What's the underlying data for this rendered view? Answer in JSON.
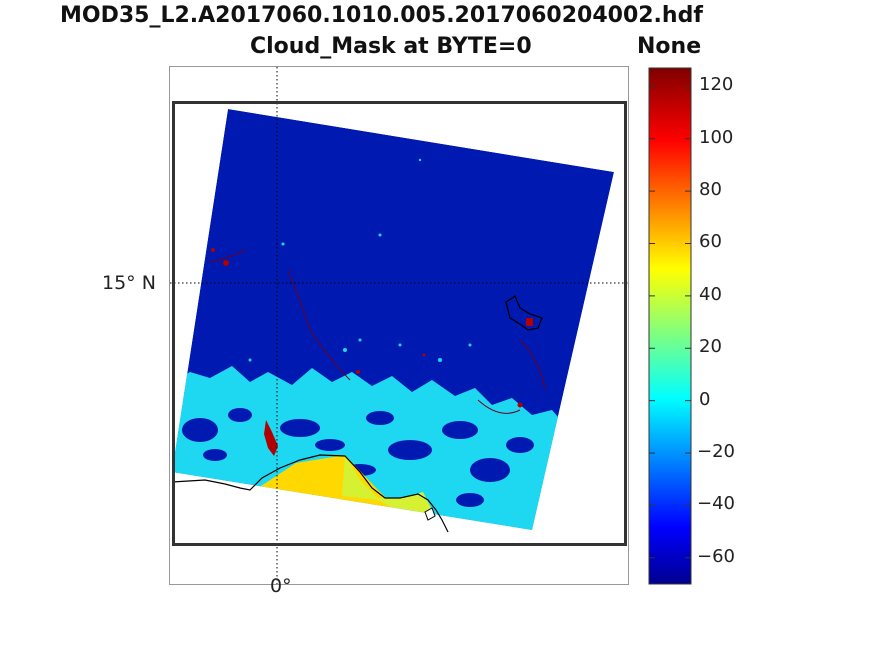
{
  "title": {
    "line1": "MOD35_L2.A2017060.1010.005.2017060204002.hdf",
    "line2": "Cloud_Mask at BYTE=0"
  },
  "colorbar": {
    "title": "None",
    "ticks": [
      "120",
      "100",
      "80",
      "60",
      "40",
      "20",
      "0",
      "−20",
      "−40",
      "−60"
    ],
    "range": [
      -70,
      127
    ],
    "colormap": "jet"
  },
  "map": {
    "lat_label": "15° N",
    "lon_label": "0°",
    "colors": {
      "clear": "#0019b0",
      "cloud": "#1ed8f2",
      "sea_yellow": "#ffd800",
      "sea_green": "#d6f032",
      "coast_red": "#b00000"
    }
  }
}
